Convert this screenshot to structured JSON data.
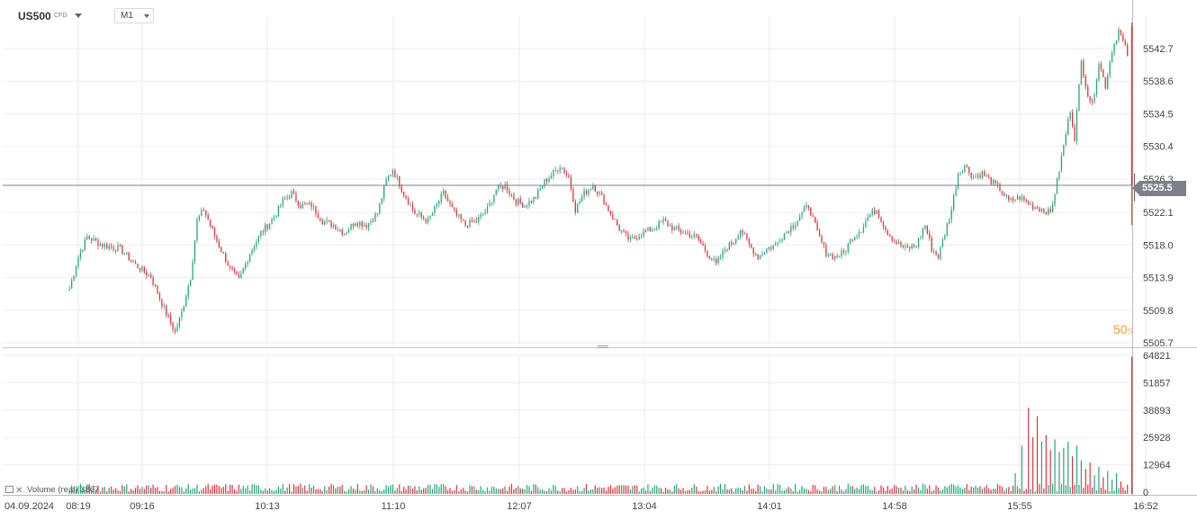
{
  "header": {
    "symbol": "US500",
    "symbol_type": "CFD",
    "timeframe": "M1"
  },
  "countdown": {
    "value": "50",
    "unit": "s"
  },
  "current_price": "5525.5",
  "volume_legend": {
    "label": "Volume (real)",
    "value": "3867"
  },
  "colors": {
    "up": "#26a67a",
    "down": "#d9363e",
    "grid": "#eeeeee",
    "axis": "#bbbbbb",
    "price_line": "#7b8089"
  },
  "chart_data": [
    {
      "type": "candlestick",
      "name": "US500 M1",
      "y_ticks": [
        "5542.7",
        "5538.6",
        "5534.5",
        "5530.4",
        "5526.3",
        "5522.1",
        "5518.0",
        "5513.9",
        "5509.8",
        "5505.7"
      ],
      "ylim": [
        5505.7,
        5546.0
      ],
      "x_ticks": [
        "04.09.2024",
        "08:19",
        "09:16",
        "10:13",
        "11:10",
        "12:07",
        "13:04",
        "14:01",
        "14:58",
        "15:55",
        "16:52"
      ],
      "last_price": 5525.5,
      "close_path": [
        [
          "08:15",
          5512.5
        ],
        [
          "08:19",
          5516.5
        ],
        [
          "08:23",
          5519.0
        ],
        [
          "08:30",
          5518.0
        ],
        [
          "08:38",
          5517.5
        ],
        [
          "08:45",
          5515.5
        ],
        [
          "08:52",
          5514.0
        ],
        [
          "08:58",
          5510.0
        ],
        [
          "09:03",
          5507.0
        ],
        [
          "09:06",
          5509.5
        ],
        [
          "09:10",
          5514.0
        ],
        [
          "09:13",
          5521.0
        ],
        [
          "09:16",
          5522.5
        ],
        [
          "09:22",
          5518.5
        ],
        [
          "09:28",
          5515.0
        ],
        [
          "09:32",
          5513.5
        ],
        [
          "09:37",
          5517.0
        ],
        [
          "09:42",
          5519.5
        ],
        [
          "09:48",
          5521.5
        ],
        [
          "09:52",
          5523.5
        ],
        [
          "09:56",
          5524.5
        ],
        [
          "10:00",
          5523.0
        ],
        [
          "10:05",
          5523.0
        ],
        [
          "10:10",
          5521.0
        ],
        [
          "10:15",
          5520.5
        ],
        [
          "10:20",
          5519.5
        ],
        [
          "10:25",
          5521.0
        ],
        [
          "10:30",
          5520.5
        ],
        [
          "10:35",
          5522.0
        ],
        [
          "10:39",
          5526.0
        ],
        [
          "10:42",
          5527.5
        ],
        [
          "10:47",
          5524.5
        ],
        [
          "10:52",
          5522.0
        ],
        [
          "10:58",
          5521.0
        ],
        [
          "11:02",
          5523.0
        ],
        [
          "11:05",
          5524.5
        ],
        [
          "11:10",
          5522.0
        ],
        [
          "11:15",
          5520.5
        ],
        [
          "11:20",
          5521.0
        ],
        [
          "11:25",
          5522.5
        ],
        [
          "11:29",
          5525.0
        ],
        [
          "11:33",
          5525.5
        ],
        [
          "11:38",
          5523.5
        ],
        [
          "11:42",
          5523.0
        ],
        [
          "11:47",
          5524.0
        ],
        [
          "11:51",
          5526.0
        ],
        [
          "11:55",
          5527.0
        ],
        [
          "11:58",
          5528.0
        ],
        [
          "12:02",
          5526.5
        ],
        [
          "12:05",
          5522.5
        ],
        [
          "12:09",
          5524.5
        ],
        [
          "12:13",
          5525.5
        ],
        [
          "12:17",
          5524.0
        ],
        [
          "12:21",
          5522.0
        ],
        [
          "12:25",
          5520.0
        ],
        [
          "12:30",
          5518.5
        ],
        [
          "12:35",
          5519.5
        ],
        [
          "12:40",
          5520.0
        ],
        [
          "12:45",
          5521.0
        ],
        [
          "12:50",
          5520.0
        ],
        [
          "12:55",
          5519.5
        ],
        [
          "13:00",
          5519.0
        ],
        [
          "13:05",
          5517.0
        ],
        [
          "13:09",
          5515.5
        ],
        [
          "13:13",
          5517.5
        ],
        [
          "13:17",
          5518.5
        ],
        [
          "13:20",
          5520.0
        ],
        [
          "13:24",
          5518.0
        ],
        [
          "13:28",
          5516.5
        ],
        [
          "13:32",
          5517.5
        ],
        [
          "13:36",
          5518.0
        ],
        [
          "13:40",
          5519.5
        ],
        [
          "13:44",
          5520.5
        ],
        [
          "13:48",
          5522.0
        ],
        [
          "13:51",
          5523.0
        ],
        [
          "13:55",
          5519.5
        ],
        [
          "13:59",
          5517.0
        ],
        [
          "14:03",
          5516.5
        ],
        [
          "14:07",
          5517.0
        ],
        [
          "14:11",
          5519.0
        ],
        [
          "14:15",
          5520.0
        ],
        [
          "14:18",
          5521.5
        ],
        [
          "14:22",
          5522.5
        ],
        [
          "14:26",
          5520.0
        ],
        [
          "14:30",
          5518.5
        ],
        [
          "14:35",
          5517.5
        ],
        [
          "14:40",
          5518.0
        ],
        [
          "14:44",
          5520.5
        ],
        [
          "14:47",
          5517.5
        ],
        [
          "14:50",
          5516.5
        ],
        [
          "14:53",
          5519.5
        ],
        [
          "14:56",
          5522.5
        ],
        [
          "14:59",
          5527.0
        ],
        [
          "15:02",
          5528.0
        ],
        [
          "15:06",
          5526.5
        ],
        [
          "15:10",
          5527.0
        ],
        [
          "15:14",
          5526.0
        ],
        [
          "15:18",
          5525.0
        ],
        [
          "15:22",
          5523.5
        ],
        [
          "15:27",
          5524.0
        ],
        [
          "15:32",
          5523.0
        ],
        [
          "15:37",
          5522.5
        ],
        [
          "15:41",
          5522.0
        ],
        [
          "15:44",
          5526.0
        ],
        [
          "15:47",
          5530.5
        ],
        [
          "15:50",
          5535.0
        ],
        [
          "15:52",
          5531.5
        ],
        [
          "15:55",
          5541.0
        ],
        [
          "15:58",
          5537.0
        ],
        [
          "16:00",
          5535.5
        ],
        [
          "16:03",
          5541.0
        ],
        [
          "16:06",
          5538.0
        ],
        [
          "16:09",
          5542.5
        ],
        [
          "16:12",
          5545.0
        ],
        [
          "16:16",
          5542.0
        ]
      ],
      "final_candle": {
        "time": "16:18",
        "open": 5545.5,
        "high": 5546.0,
        "low": 5520.5,
        "close": 5525.5
      }
    },
    {
      "type": "bar",
      "name": "Volume (real)",
      "y_ticks": [
        "64821",
        "51857",
        "38893",
        "25928",
        "12964",
        "0"
      ],
      "ylim": [
        0,
        64821
      ],
      "baseline_volume": [
        200,
        4000
      ],
      "spikes": [
        [
          "15:25",
          9000
        ],
        [
          "15:28",
          22000
        ],
        [
          "15:31",
          40000
        ],
        [
          "15:33",
          26000
        ],
        [
          "15:35",
          36000
        ],
        [
          "15:37",
          24000
        ],
        [
          "15:39",
          27000
        ],
        [
          "15:41",
          20000
        ],
        [
          "15:43",
          25000
        ],
        [
          "15:45",
          19000
        ],
        [
          "15:47",
          21000
        ],
        [
          "15:49",
          24000
        ],
        [
          "15:51",
          17000
        ],
        [
          "15:53",
          22000
        ],
        [
          "15:55",
          15000
        ],
        [
          "15:57",
          11000
        ],
        [
          "15:59",
          14000
        ],
        [
          "16:01",
          8000
        ],
        [
          "16:03",
          12000
        ],
        [
          "16:05",
          7000
        ],
        [
          "16:07",
          10000
        ],
        [
          "16:09",
          6000
        ],
        [
          "16:11",
          9000
        ],
        [
          "16:13",
          5000
        ],
        [
          "16:16",
          3500
        ],
        [
          "16:18",
          64200
        ]
      ]
    }
  ]
}
